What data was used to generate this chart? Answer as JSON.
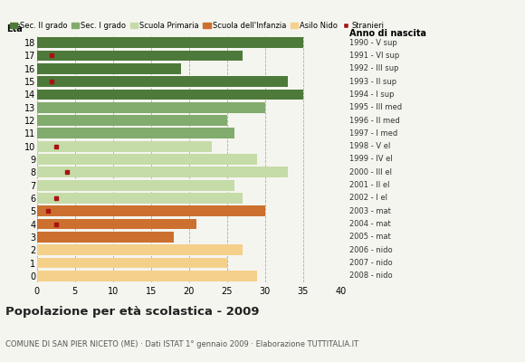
{
  "ages": [
    18,
    17,
    16,
    15,
    14,
    13,
    12,
    11,
    10,
    9,
    8,
    7,
    6,
    5,
    4,
    3,
    2,
    1,
    0
  ],
  "years": [
    "1990 - V sup",
    "1991 - VI sup",
    "1992 - III sup",
    "1993 - II sup",
    "1994 - I sup",
    "1995 - III med",
    "1996 - II med",
    "1997 - I med",
    "1998 - V el",
    "1999 - IV el",
    "2000 - III el",
    "2001 - II el",
    "2002 - I el",
    "2003 - mat",
    "2004 - mat",
    "2005 - mat",
    "2006 - nido",
    "2007 - nido",
    "2008 - nido"
  ],
  "values": [
    35,
    27,
    19,
    33,
    35,
    30,
    25,
    26,
    23,
    29,
    33,
    26,
    27,
    30,
    21,
    18,
    27,
    25,
    29
  ],
  "stranieri_x": [
    0,
    2,
    0,
    2,
    0,
    0,
    0,
    0,
    2.5,
    0,
    4,
    0,
    2.5,
    1.5,
    2.5,
    0,
    0,
    0,
    0
  ],
  "categories": {
    "Sec. II grado": {
      "ages": [
        14,
        15,
        16,
        17,
        18
      ],
      "color": "#4d7a3a"
    },
    "Sec. I grado": {
      "ages": [
        11,
        12,
        13
      ],
      "color": "#82ab6e"
    },
    "Scuola Primaria": {
      "ages": [
        6,
        7,
        8,
        9,
        10
      ],
      "color": "#c5dba8"
    },
    "Scuola dell'Infanzia": {
      "ages": [
        3,
        4,
        5
      ],
      "color": "#cc7030"
    },
    "Asilo Nido": {
      "ages": [
        0,
        1,
        2
      ],
      "color": "#f5d08a"
    }
  },
  "stranieri_color": "#aa1111",
  "bar_height": 0.82,
  "title": "Popolazione per età scolastica - 2009",
  "subtitle": "COMUNE DI SAN PIER NICETO (ME) · Dati ISTAT 1° gennaio 2009 · Elaborazione TUTTITALIA.IT",
  "xlim": [
    0,
    40
  ],
  "xticks": [
    0,
    5,
    10,
    15,
    20,
    25,
    30,
    35,
    40
  ],
  "background_color": "#f5f5ef",
  "age_label": "Età",
  "year_label": "Anno di nascita",
  "legend_order": [
    "Sec. II grado",
    "Sec. I grado",
    "Scuola Primaria",
    "Scuola dell'Infanzia",
    "Asilo Nido",
    "Stranieri"
  ]
}
